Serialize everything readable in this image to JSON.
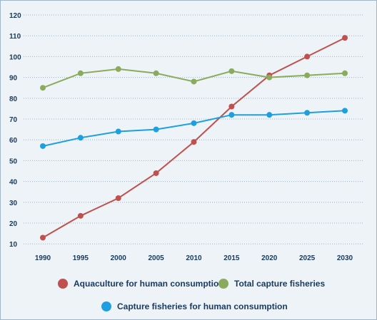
{
  "chart_data": {
    "type": "line",
    "x": [
      1990,
      1995,
      2000,
      2005,
      2010,
      2015,
      2020,
      2025,
      2030
    ],
    "xticks": [
      "1990",
      "1995",
      "2000",
      "2005",
      "2010",
      "2015",
      "2020",
      "2025",
      "2030"
    ],
    "yticks": [
      "10",
      "20",
      "30",
      "40",
      "50",
      "60",
      "70",
      "80",
      "90",
      "100",
      "110",
      "120"
    ],
    "ylim": [
      7,
      120
    ],
    "grid": true,
    "legend_position": "bottom",
    "series": [
      {
        "name": "Aquaculture for human consumption",
        "color": "#c0504d",
        "values": [
          13,
          23.5,
          32,
          44,
          59,
          76,
          91,
          100,
          109
        ]
      },
      {
        "name": "Total capture fisheries",
        "color": "#8aab5c",
        "values": [
          85,
          92,
          94,
          92,
          88,
          93,
          90,
          91,
          92
        ]
      },
      {
        "name": "Capture fisheries for human consumption",
        "color": "#1e9fe0",
        "values": [
          57,
          61,
          64,
          65,
          68,
          72,
          72,
          73,
          74
        ]
      }
    ]
  }
}
